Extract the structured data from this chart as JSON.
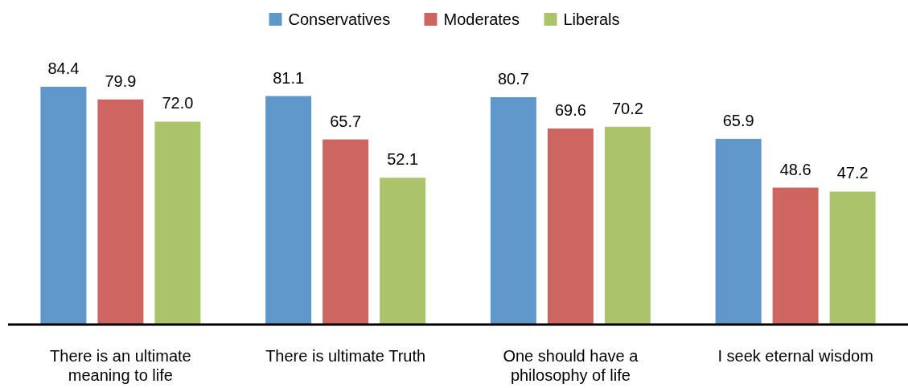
{
  "chart_data": {
    "type": "bar",
    "categories": [
      "There is an ultimate meaning to life",
      "There is ultimate Truth",
      "One should have a philosophy of life",
      "I seek eternal wisdom"
    ],
    "series": [
      {
        "name": "Conservatives",
        "color": "#6097cb",
        "values": [
          84.4,
          81.1,
          80.7,
          65.9
        ],
        "value_labels": [
          "84.4",
          "81.1",
          "80.7",
          "65.9"
        ]
      },
      {
        "name": "Moderates",
        "color": "#cd6560",
        "values": [
          79.9,
          65.7,
          69.6,
          48.6
        ],
        "value_labels": [
          "79.9",
          "65.7",
          "69.6",
          "48.6"
        ]
      },
      {
        "name": "Liberals",
        "color": "#abc46c",
        "values": [
          72.0,
          52.1,
          70.2,
          47.2
        ],
        "value_labels": [
          "72.0",
          "52.1",
          "70.2",
          "47.2"
        ]
      }
    ],
    "legend": "top"
  }
}
